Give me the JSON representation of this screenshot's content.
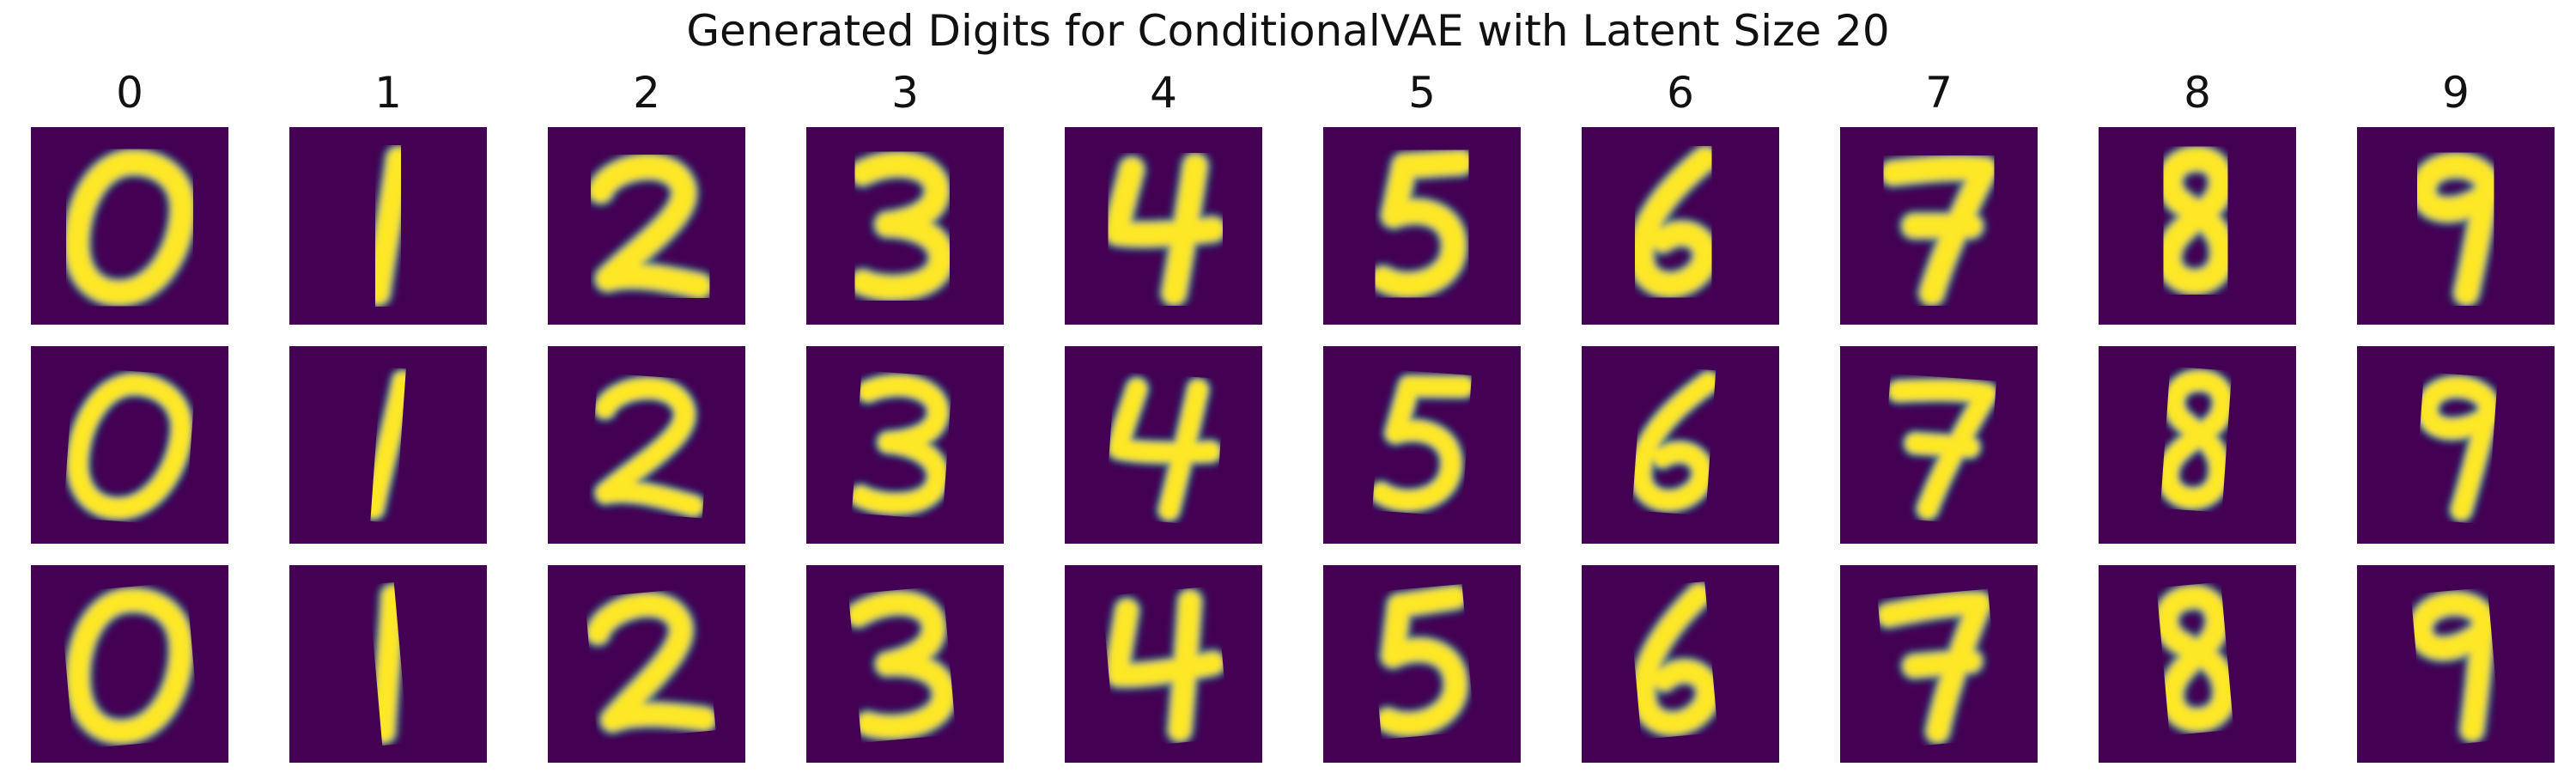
{
  "title": "Generated Digits for ConditionalVAE with Latent Size 20",
  "column_labels": [
    "0",
    "1",
    "2",
    "3",
    "4",
    "5",
    "6",
    "7",
    "8",
    "9"
  ],
  "grid": {
    "rows": 3,
    "columns": 10
  },
  "colormap": {
    "name": "viridis",
    "background": "#440154",
    "mid": "#21918c",
    "high": "#fde725"
  },
  "samples": [
    [
      "0",
      "1",
      "2",
      "3",
      "4",
      "5",
      "6",
      "7",
      "8",
      "9"
    ],
    [
      "0",
      "1",
      "2",
      "3",
      "4",
      "5",
      "6",
      "7",
      "8",
      "9"
    ],
    [
      "0",
      "1",
      "2",
      "3",
      "4",
      "5",
      "6",
      "7",
      "8",
      "9"
    ]
  ]
}
